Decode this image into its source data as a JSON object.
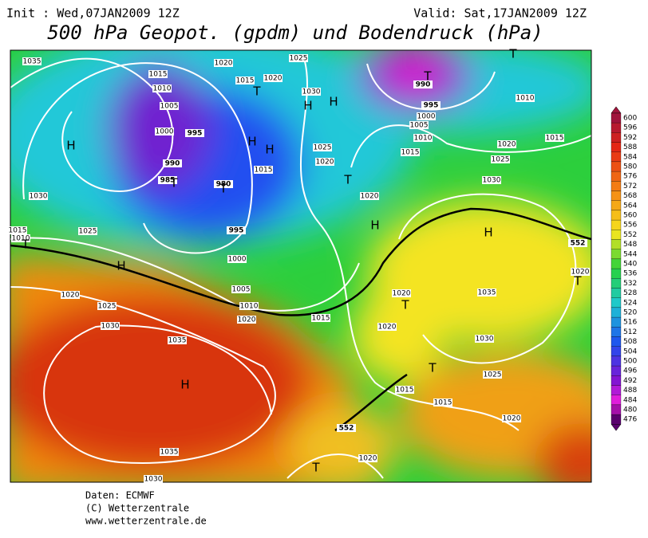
{
  "header": {
    "init": "Init : Wed,07JAN2009 12Z",
    "valid": "Valid: Sat,17JAN2009 12Z"
  },
  "title": "500 hPa Geopot. (gpdm) und Bodendruck (hPa)",
  "colorbar": {
    "labels": [
      "600",
      "596",
      "592",
      "588",
      "584",
      "580",
      "576",
      "572",
      "568",
      "564",
      "560",
      "556",
      "552",
      "548",
      "544",
      "540",
      "536",
      "532",
      "528",
      "524",
      "520",
      "516",
      "512",
      "508",
      "504",
      "500",
      "496",
      "492",
      "488",
      "484",
      "480",
      "476"
    ]
  },
  "map": {
    "labels": [
      "1035",
      "1020",
      "1015",
      "1010",
      "1005",
      "1000",
      "995",
      "990",
      "985",
      "980",
      "995",
      "1000",
      "1005",
      "1010",
      "1020",
      "1015",
      "1025",
      "1020",
      "1015",
      "1030",
      "1025",
      "1020",
      "1015",
      "1020",
      "1030",
      "1025",
      "1020",
      "1015",
      "1010",
      "1015",
      "1010",
      "1005",
      "1000",
      "995",
      "990",
      "1030",
      "1025",
      "1015",
      "1010",
      "1020",
      "1025",
      "1030",
      "1035",
      "1035",
      "1030",
      "1020",
      "1020",
      "1035",
      "1030",
      "1025",
      "1015",
      "1015",
      "1020",
      "1020",
      "1020",
      "552",
      "552",
      "H",
      "H",
      "T",
      "T",
      "T",
      "T",
      "H",
      "H",
      "H",
      "H",
      "T",
      "T",
      "T",
      "H",
      "H",
      "T",
      "T",
      "T",
      "H",
      "T"
    ]
  },
  "footer": {
    "lines": [
      "Daten: ECMWF",
      "(C) Wetterzentrale",
      "www.wetterzentrale.de"
    ]
  }
}
